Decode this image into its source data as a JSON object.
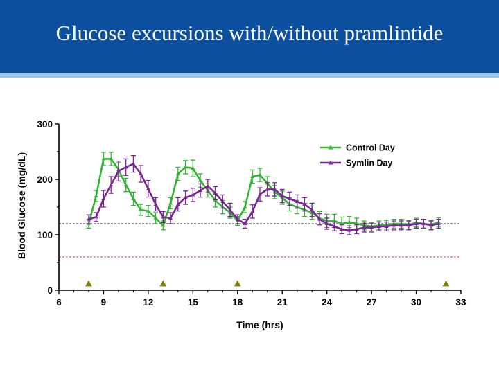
{
  "slide": {
    "title": "Glucose excursions with/without pramlintide"
  },
  "colors": {
    "title_bar": "#0b4f9e",
    "title_accent": "#9ec4ea",
    "control": "#33b533",
    "symlin": "#7a2496",
    "reference_upper": "#333333",
    "reference_lower": "#d94a4a",
    "marker": "#808000"
  },
  "chart_data": {
    "type": "line",
    "xlabel": "Time  (hrs)",
    "ylabel": "Blood  Glucose  (mg/dL)",
    "xlim": [
      6,
      33
    ],
    "ylim": [
      0,
      300
    ],
    "xticks": [
      6,
      9,
      12,
      15,
      18,
      21,
      24,
      27,
      30,
      33
    ],
    "yticks": [
      0,
      100,
      200,
      300
    ],
    "grid": false,
    "legend_position": "top-right",
    "reference_lines": [
      {
        "y": 120,
        "style": "dashed",
        "color": "#333333"
      },
      {
        "y": 60,
        "style": "dashed",
        "color": "#d94a4a"
      }
    ],
    "markers": {
      "symbol": "triangle-up",
      "y": 12,
      "x": [
        8,
        13,
        18,
        32
      ]
    },
    "series": [
      {
        "name": "Control Day",
        "color": "#33b533",
        "x": [
          8,
          8.5,
          9,
          9.5,
          10,
          10.5,
          11,
          11.5,
          12,
          12.5,
          13,
          13.5,
          14,
          14.5,
          15,
          15.5,
          16,
          16.5,
          17,
          17.5,
          18,
          18.5,
          19,
          19.5,
          20,
          20.5,
          21,
          21.5,
          22,
          22.5,
          23,
          23.5,
          24,
          24.5,
          25,
          25.5,
          26,
          26.5,
          27,
          27.5,
          28,
          28.5,
          29,
          29.5,
          30,
          30.5,
          31,
          31.5
        ],
        "y": [
          120,
          170,
          237,
          237,
          218,
          190,
          165,
          145,
          143,
          130,
          117,
          157,
          210,
          222,
          220,
          198,
          180,
          162,
          150,
          140,
          125,
          150,
          205,
          208,
          193,
          177,
          167,
          155,
          150,
          145,
          140,
          130,
          125,
          125,
          120,
          123,
          120,
          117,
          115,
          117,
          118,
          120,
          120,
          118,
          122,
          120,
          118,
          123
        ],
        "err": [
          8,
          10,
          12,
          12,
          12,
          12,
          12,
          10,
          10,
          10,
          8,
          10,
          12,
          12,
          15,
          12,
          12,
          12,
          12,
          10,
          8,
          10,
          12,
          12,
          12,
          12,
          12,
          12,
          12,
          12,
          12,
          12,
          12,
          12,
          12,
          10,
          10,
          8,
          8,
          8,
          8,
          8,
          8,
          8,
          8,
          8,
          8,
          8
        ]
      },
      {
        "name": "Symlin Day",
        "color": "#7a2496",
        "x": [
          8,
          8.5,
          9,
          9.5,
          10,
          10.5,
          11,
          11.5,
          12,
          12.5,
          13,
          13.5,
          14,
          14.5,
          15,
          15.5,
          16,
          16.5,
          17,
          17.5,
          18,
          18.5,
          19,
          19.5,
          20,
          20.5,
          21,
          21.5,
          22,
          22.5,
          23,
          23.5,
          24,
          24.5,
          25,
          25.5,
          26,
          26.5,
          27,
          27.5,
          28,
          28.5,
          29,
          29.5,
          30,
          30.5,
          31,
          31.5
        ],
        "y": [
          128,
          132,
          165,
          190,
          215,
          222,
          228,
          210,
          183,
          155,
          132,
          130,
          155,
          167,
          172,
          180,
          188,
          175,
          160,
          145,
          128,
          120,
          142,
          173,
          182,
          182,
          170,
          165,
          160,
          155,
          145,
          128,
          120,
          115,
          110,
          108,
          110,
          113,
          113,
          115,
          115,
          117,
          117,
          117,
          120,
          120,
          117,
          120
        ],
        "err": [
          8,
          8,
          15,
          15,
          18,
          15,
          15,
          15,
          15,
          12,
          10,
          10,
          12,
          12,
          12,
          12,
          12,
          12,
          12,
          12,
          8,
          8,
          12,
          12,
          12,
          12,
          12,
          12,
          12,
          12,
          12,
          10,
          10,
          8,
          8,
          8,
          8,
          8,
          8,
          8,
          8,
          8,
          8,
          8,
          8,
          8,
          8,
          8
        ]
      }
    ]
  }
}
